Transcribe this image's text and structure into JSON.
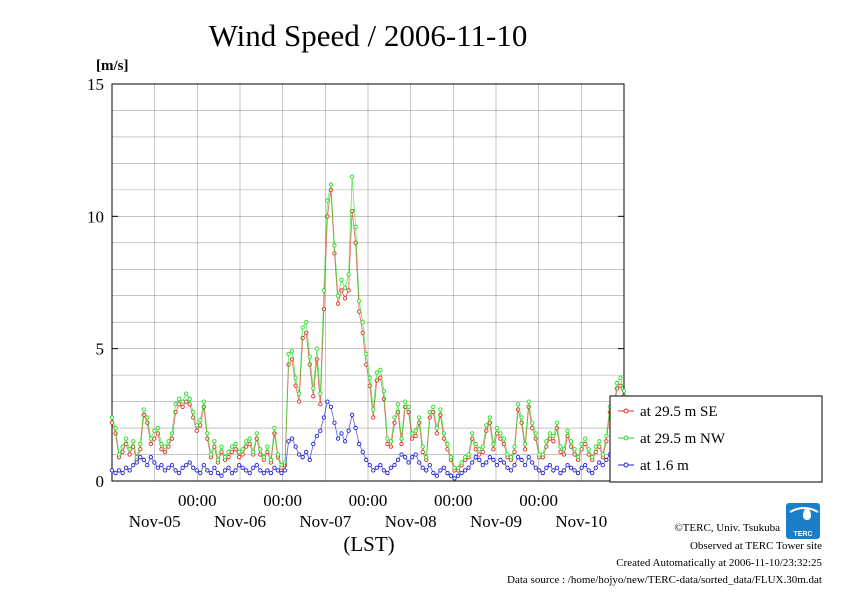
{
  "chart_data": {
    "type": "line",
    "title": "Wind Speed / 2006-11-10",
    "yunit": "[m/s]",
    "xlabel": "(LST)",
    "ylim": [
      0,
      15
    ],
    "yticks": [
      0,
      5,
      10,
      15
    ],
    "x_tick_times": [
      "00:00",
      "00:00",
      "00:00",
      "00:00",
      "00:00"
    ],
    "x_date_labels": [
      "Nov-05",
      "Nov-06",
      "Nov-07",
      "Nov-08",
      "Nov-09",
      "Nov-10"
    ],
    "grid": true,
    "legend_position": "right",
    "x_range_days": [
      0,
      6
    ],
    "series": [
      {
        "name": "at 29.5 m SE",
        "color": "#e03020",
        "values": [
          2.2,
          1.8,
          0.9,
          1.1,
          1.4,
          1.0,
          1.3,
          0.8,
          1.2,
          2.5,
          2.2,
          1.4,
          1.6,
          1.8,
          1.2,
          1.1,
          1.3,
          1.6,
          2.6,
          2.9,
          2.8,
          3.0,
          2.9,
          2.4,
          1.9,
          2.1,
          2.8,
          1.6,
          0.9,
          1.3,
          0.7,
          1.1,
          0.8,
          0.9,
          1.1,
          1.2,
          0.9,
          1.0,
          1.3,
          1.4,
          1.0,
          1.6,
          1.0,
          0.8,
          1.1,
          0.7,
          1.8,
          0.9,
          0.5,
          0.6,
          4.4,
          4.6,
          3.6,
          3.0,
          5.4,
          5.6,
          4.4,
          3.2,
          4.6,
          2.9,
          6.5,
          10.0,
          11.0,
          8.6,
          6.7,
          7.2,
          6.9,
          7.2,
          10.2,
          9.0,
          6.4,
          5.6,
          4.4,
          3.6,
          2.4,
          3.8,
          3.9,
          3.1,
          1.4,
          1.3,
          2.2,
          2.6,
          1.4,
          2.8,
          2.6,
          1.6,
          1.7,
          2.2,
          1.1,
          0.8,
          2.4,
          2.6,
          1.8,
          2.5,
          1.6,
          1.2,
          0.8,
          0.4,
          0.4,
          0.6,
          0.8,
          0.9,
          1.6,
          1.2,
          1.0,
          1.1,
          1.9,
          2.2,
          1.2,
          1.8,
          1.6,
          1.4,
          0.9,
          0.8,
          1.1,
          2.7,
          2.2,
          1.2,
          2.8,
          2.0,
          1.6,
          0.9,
          0.9,
          1.3,
          1.6,
          1.5,
          2.0,
          1.1,
          1.0,
          1.7,
          1.3,
          1.0,
          0.8,
          1.2,
          1.4,
          1.0,
          0.8,
          1.1,
          1.3,
          0.9,
          1.5,
          2.6,
          2.4,
          3.5,
          3.6,
          3.2
        ]
      },
      {
        "name": "at 29.5 m NW",
        "color": "#20e020",
        "values": [
          2.4,
          2.0,
          1.0,
          1.3,
          1.6,
          1.2,
          1.5,
          0.9,
          1.4,
          2.7,
          2.4,
          1.6,
          1.9,
          2.0,
          1.4,
          1.3,
          1.5,
          1.8,
          2.9,
          3.1,
          3.0,
          3.3,
          3.1,
          2.6,
          2.1,
          2.3,
          3.0,
          1.8,
          1.0,
          1.5,
          0.8,
          1.3,
          0.9,
          1.1,
          1.3,
          1.4,
          1.1,
          1.2,
          1.5,
          1.6,
          1.1,
          1.8,
          1.2,
          0.9,
          1.3,
          0.8,
          2.0,
          1.0,
          0.6,
          0.7,
          4.8,
          4.9,
          3.9,
          3.3,
          5.8,
          6.0,
          4.7,
          3.5,
          5.0,
          3.3,
          7.2,
          10.6,
          11.2,
          8.9,
          7.0,
          7.6,
          7.3,
          7.8,
          11.5,
          9.6,
          6.8,
          6.0,
          4.8,
          3.9,
          2.7,
          4.1,
          4.2,
          3.4,
          1.6,
          1.5,
          2.4,
          2.9,
          1.6,
          3.0,
          2.8,
          1.8,
          1.9,
          2.4,
          1.3,
          0.9,
          2.6,
          2.8,
          2.0,
          2.7,
          1.8,
          1.4,
          0.9,
          0.5,
          0.5,
          0.7,
          0.9,
          1.0,
          1.8,
          1.4,
          1.2,
          1.3,
          2.1,
          2.4,
          1.4,
          2.0,
          1.8,
          1.6,
          1.0,
          0.9,
          1.3,
          2.9,
          2.4,
          1.4,
          3.0,
          2.2,
          1.8,
          1.0,
          1.0,
          1.5,
          1.8,
          1.7,
          2.2,
          1.3,
          1.2,
          1.9,
          1.5,
          1.2,
          0.9,
          1.4,
          1.6,
          1.2,
          0.9,
          1.3,
          1.5,
          1.0,
          1.7,
          2.8,
          2.6,
          3.7,
          3.9,
          3.4
        ]
      },
      {
        "name": "at 1.6 m",
        "color": "#2020e0",
        "values": [
          0.4,
          0.3,
          0.4,
          0.3,
          0.5,
          0.4,
          0.6,
          0.7,
          0.9,
          0.8,
          0.6,
          0.9,
          0.7,
          0.5,
          0.6,
          0.4,
          0.5,
          0.6,
          0.4,
          0.3,
          0.5,
          0.6,
          0.7,
          0.5,
          0.4,
          0.3,
          0.6,
          0.4,
          0.3,
          0.5,
          0.3,
          0.2,
          0.4,
          0.5,
          0.3,
          0.4,
          0.6,
          0.5,
          0.4,
          0.3,
          0.5,
          0.6,
          0.4,
          0.3,
          0.4,
          0.3,
          0.5,
          0.4,
          0.3,
          0.4,
          1.5,
          1.6,
          1.3,
          1.0,
          0.9,
          1.1,
          0.8,
          1.4,
          1.7,
          1.9,
          2.4,
          3.0,
          2.8,
          2.2,
          1.6,
          1.8,
          1.5,
          1.9,
          2.5,
          2.0,
          1.4,
          1.1,
          0.8,
          0.6,
          0.4,
          0.5,
          0.6,
          0.4,
          0.3,
          0.5,
          0.6,
          0.8,
          1.0,
          0.9,
          0.7,
          0.9,
          1.0,
          0.7,
          0.5,
          0.4,
          0.6,
          0.3,
          0.2,
          0.4,
          0.5,
          0.3,
          0.2,
          0.1,
          0.2,
          0.3,
          0.4,
          0.5,
          0.7,
          0.9,
          0.8,
          0.6,
          0.7,
          0.9,
          0.8,
          0.6,
          0.8,
          0.7,
          0.5,
          0.4,
          0.6,
          0.9,
          0.8,
          0.6,
          0.9,
          0.7,
          0.5,
          0.4,
          0.3,
          0.5,
          0.6,
          0.4,
          0.5,
          0.3,
          0.4,
          0.6,
          0.5,
          0.4,
          0.3,
          0.5,
          0.6,
          0.4,
          0.3,
          0.5,
          0.7,
          0.6,
          0.8,
          1.0,
          1.2,
          1.3,
          1.1,
          0.9
        ]
      }
    ]
  },
  "footer": {
    "copyright": "©TERC, Univ. Tsukuba",
    "observed": "Observed at TERC Tower site",
    "created": "Created Automatically at 2006-11-10/23:32:25",
    "source": "Data source : /home/hojyo/new/TERC-data/sorted_data/FLUX.30m.dat"
  },
  "logo": {
    "text": "TERC",
    "color": "#1a7ec8"
  }
}
